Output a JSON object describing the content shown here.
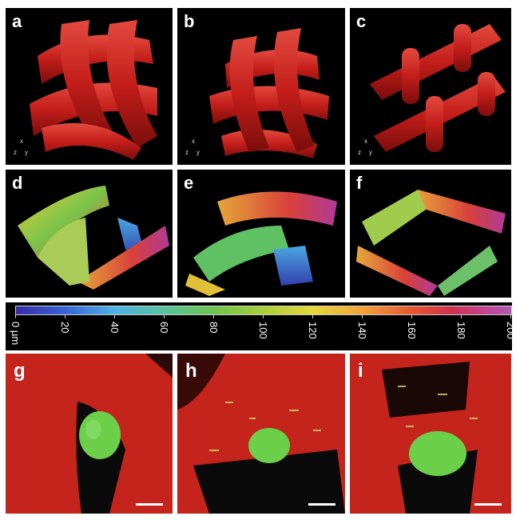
{
  "panels": {
    "a": "a",
    "b": "b",
    "c": "c",
    "d": "d",
    "e": "e",
    "f": "f",
    "g": "g",
    "h": "h",
    "i": "i"
  },
  "axes_labels": {
    "x": "x",
    "y": "y",
    "z": "z"
  },
  "colorbar": {
    "ticks": [
      "0 µm",
      "20",
      "40",
      "60",
      "80",
      "100",
      "120",
      "140",
      "160",
      "180",
      "200"
    ]
  },
  "colors": {
    "scaffold_red": "#c8201c",
    "cell_green": "#6ccf4a",
    "background": "#000000"
  }
}
